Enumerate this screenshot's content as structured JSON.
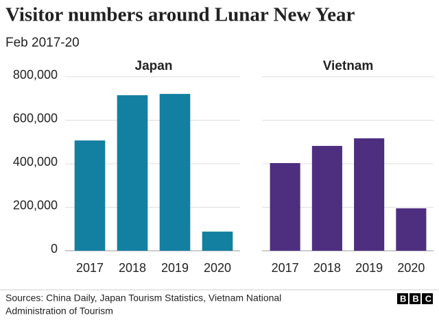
{
  "title": "Visitor numbers around Lunar New Year",
  "subtitle": "Feb 2017-20",
  "source": [
    "Sources: China Daily, Japan Tourism Statistics, Vietnam National",
    "Administration of Tourism"
  ],
  "logo": "BBC",
  "chart_data": [
    {
      "type": "bar",
      "title": "Japan",
      "categories": [
        "2017",
        "2018",
        "2019",
        "2020"
      ],
      "values": [
        507000,
        715000,
        721000,
        88000
      ],
      "color": "#1380a1",
      "ylim": [
        0,
        800000
      ],
      "yticks": [
        0,
        {
          "value": 200000,
          "label": "200,000"
        },
        {
          "value": 400000,
          "label": "400,000"
        },
        {
          "value": 600000,
          "label": "600,000"
        },
        {
          "value": 800000,
          "label": "800,000"
        }
      ],
      "grid": true
    },
    {
      "type": "bar",
      "title": "Vietnam",
      "categories": [
        "2017",
        "2018",
        "2019",
        "2020"
      ],
      "values": [
        403000,
        482000,
        517000,
        195000
      ],
      "color": "#4d2e7f",
      "ylim": [
        0,
        800000
      ],
      "yticks": [
        0,
        200000,
        400000,
        600000,
        800000
      ],
      "grid": true
    }
  ]
}
